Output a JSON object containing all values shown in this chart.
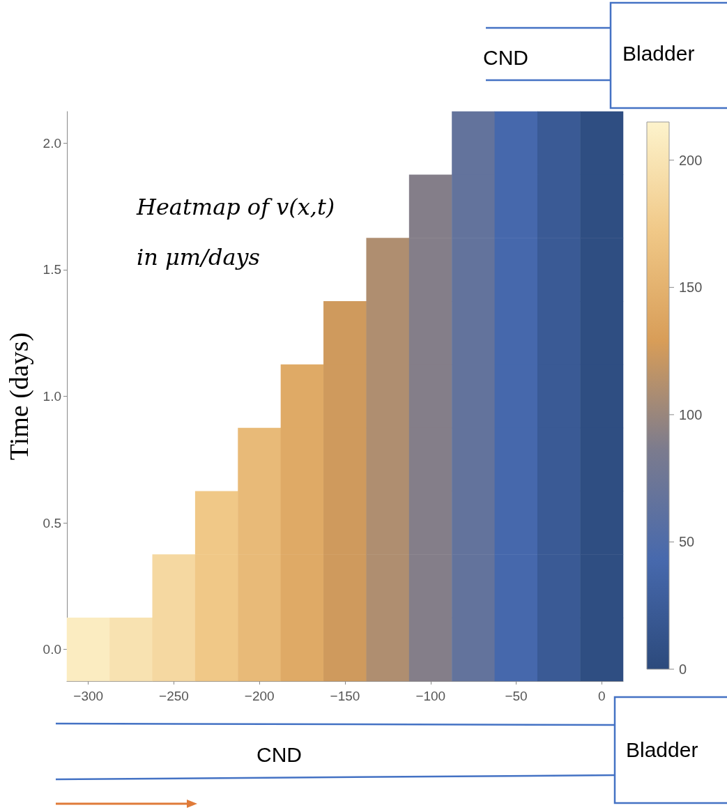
{
  "chart_data": {
    "type": "heatmap",
    "ylabel": "Time (days)",
    "annotations": [
      "Heatmap of v(x,t)",
      "in μm/days",
      "CND",
      "Bladder",
      "CND",
      "Bladder"
    ],
    "categories": [
      "−300",
      null,
      "−250",
      null,
      "−200",
      null,
      "−150",
      null,
      "−100",
      null,
      "−50",
      null,
      "0"
    ],
    "y_categories": [
      "2.0",
      null,
      "1.5",
      null,
      "1.0",
      null,
      "0.5",
      null,
      "0.0"
    ],
    "cells": [
      [
        null,
        null,
        null,
        null,
        null,
        null,
        null,
        null,
        null,
        66,
        42,
        22,
        5
      ],
      [
        null,
        null,
        null,
        null,
        null,
        null,
        null,
        null,
        90,
        66,
        42,
        22,
        5
      ],
      [
        null,
        null,
        null,
        null,
        null,
        null,
        null,
        110,
        90,
        66,
        42,
        22,
        5
      ],
      [
        null,
        null,
        null,
        null,
        null,
        null,
        125,
        110,
        90,
        66,
        42,
        22,
        5
      ],
      [
        null,
        null,
        null,
        null,
        null,
        142,
        125,
        110,
        90,
        66,
        42,
        22,
        5
      ],
      [
        null,
        null,
        null,
        null,
        158,
        142,
        125,
        110,
        90,
        66,
        42,
        22,
        5
      ],
      [
        null,
        null,
        null,
        172,
        158,
        142,
        125,
        110,
        90,
        66,
        42,
        22,
        5
      ],
      [
        null,
        null,
        188,
        172,
        158,
        142,
        125,
        110,
        90,
        66,
        42,
        22,
        5
      ],
      [
        208,
        198,
        188,
        172,
        158,
        142,
        125,
        110,
        90,
        66,
        42,
        22,
        5
      ]
    ],
    "clim": [
      0,
      215
    ],
    "cticks": [
      0,
      50,
      100,
      150,
      200
    ]
  }
}
